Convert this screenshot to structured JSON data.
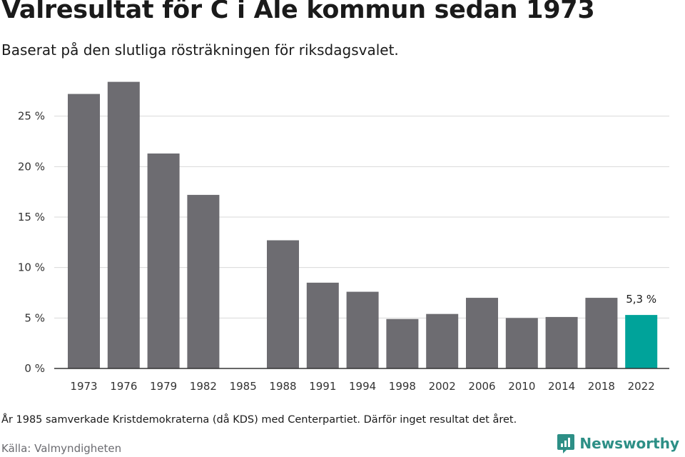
{
  "header": {
    "title": "Valresultat för C i Ale kommun sedan 1973",
    "subtitle": "Baserat på den slutliga rösträkningen för riksdagsvalet."
  },
  "footer": {
    "note": "År 1985 samverkade Kristdemokraterna (då KDS) med Centerpartiet. Därför inget resultat det året.",
    "source": "Källa: Valmyndigheten",
    "brand": "Newsworthy",
    "brand_icon": "newsworthy-logo-icon"
  },
  "colors": {
    "bar": "#6d6c71",
    "highlight": "#00a39a",
    "grid": "#d9d9d9",
    "axis": "#333333",
    "brand": "#2d8f86"
  },
  "chart_data": {
    "type": "bar",
    "categories": [
      "1973",
      "1976",
      "1979",
      "1982",
      "1985",
      "1988",
      "1991",
      "1994",
      "1998",
      "2002",
      "2006",
      "2010",
      "2014",
      "2018",
      "2022"
    ],
    "values": [
      27.2,
      28.4,
      21.3,
      17.2,
      null,
      12.7,
      8.5,
      7.6,
      4.9,
      5.4,
      7.0,
      5.0,
      5.1,
      7.0,
      5.3
    ],
    "highlight_index": 14,
    "highlight_label": "5,3 %",
    "ylim": [
      0,
      30
    ],
    "yticks": [
      0,
      5,
      10,
      15,
      20,
      25
    ],
    "ytick_labels": [
      "0 %",
      "5 %",
      "10 %",
      "15 %",
      "20 %",
      "25 %"
    ],
    "grid": true,
    "xlabel": "",
    "ylabel": ""
  }
}
